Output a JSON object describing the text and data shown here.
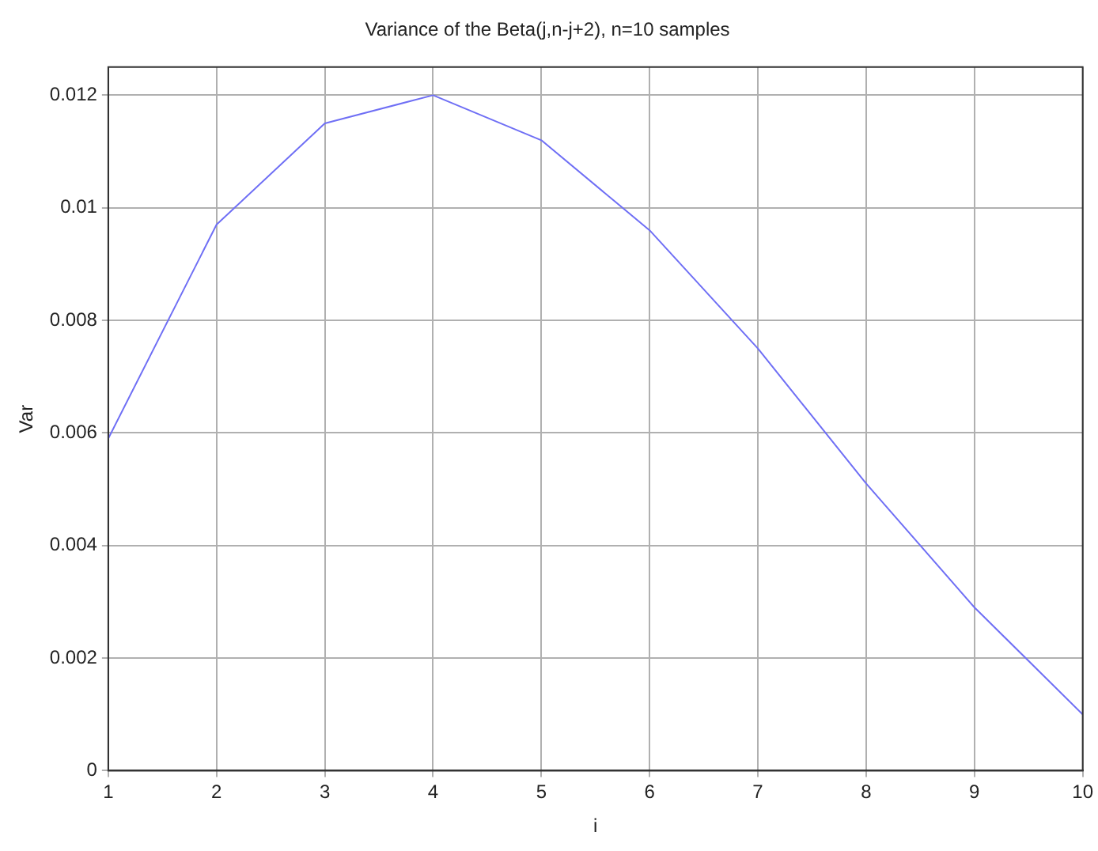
{
  "chart_data": {
    "type": "line",
    "title": "Variance of the Beta(j,n-j+2), n=10 samples",
    "xlabel": "i",
    "ylabel": "Var",
    "x": [
      1,
      2,
      3,
      4,
      5,
      6,
      7,
      8,
      9,
      10
    ],
    "series": [
      {
        "color": "#6f6ff5",
        "values": [
          0.0059,
          0.0097,
          0.0115,
          0.012,
          0.0112,
          0.0096,
          0.0075,
          0.0051,
          0.0029,
          0.001
        ]
      }
    ],
    "xlim": [
      1,
      10
    ],
    "xticks": [
      1,
      2,
      3,
      4,
      5,
      6,
      7,
      8,
      9,
      10
    ],
    "ylim": [
      0,
      0.0125
    ],
    "yticks": [
      0,
      0.002,
      0.004,
      0.006,
      0.008,
      0.01,
      0.012
    ],
    "grid": true,
    "legend": false,
    "marker": "none",
    "line_style": "solid"
  }
}
